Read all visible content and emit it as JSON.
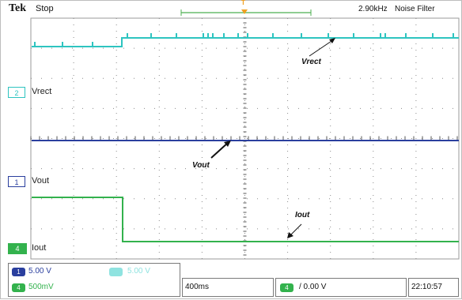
{
  "header": {
    "brand": "Tek",
    "state": "Stop",
    "trigger_marker": "T",
    "freq": "2.90kHz",
    "filter": "Noise Filter"
  },
  "channels": [
    {
      "num": "2",
      "name": "Vrect",
      "color": "#2ec4c0"
    },
    {
      "num": "1",
      "name": "Vout",
      "color": "#2a3f9e"
    },
    {
      "num": "4",
      "name": "Iout",
      "color": "#33b24d"
    }
  ],
  "annotations": {
    "vrect": "Vrect",
    "vout": "Vout",
    "iout": "Iout"
  },
  "status": {
    "ch1_num": "1",
    "ch1_scale": "5.00 V",
    "ch2_scale": "5.00 V",
    "ch4_num": "4",
    "ch4_scale": "500mV",
    "timebase": "400ms",
    "trig_ch": "4",
    "trig_level": "/ 0.00 V",
    "time": "22:10:57"
  },
  "colors": {
    "grid": "#8a8a8a",
    "cyan": "#2ec4c0",
    "blue": "#2a3f9e",
    "green": "#33b24d"
  }
}
